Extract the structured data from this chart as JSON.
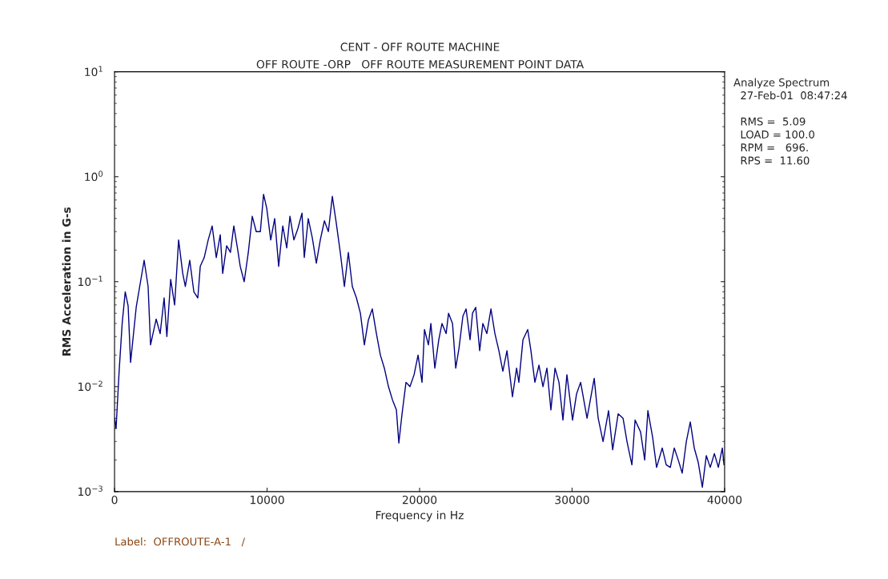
{
  "chart_data": {
    "type": "line",
    "title": "CENT - OFF ROUTE MACHINE",
    "subtitle": "OFF ROUTE -ORP   OFF ROUTE MEASUREMENT POINT DATA",
    "xlabel": "Frequency in Hz",
    "ylabel": "RMS Acceleration in G-s",
    "annotations": [
      "Analyze Spectrum",
      "  27-Feb-01  08:47:24",
      "  RMS =  5.09",
      "  LOAD = 100.0",
      "  RPM =   696.",
      "  RPS =  11.60",
      "Label:  OFFROUTE-A-1   /"
    ],
    "log": "y",
    "grid": false,
    "marker": "none",
    "line_style": "solid",
    "xlim": [
      0,
      40000
    ],
    "xticks": [
      0,
      10000,
      20000,
      30000,
      40000
    ],
    "ylim": [
      0.001,
      10
    ],
    "yticks": [
      {
        "value": 0.001,
        "label": "10$^{−3}$"
      },
      {
        "value": 0.01,
        "label": "10$^{−2}$"
      },
      {
        "value": 0.1,
        "label": "10$^{−1}$"
      },
      {
        "value": 1,
        "label": "10$^{0}$"
      },
      {
        "value": 10,
        "label": "10$^{1}$"
      }
    ],
    "series": [
      {
        "color": "#000080",
        "x": [
          0,
          100,
          300,
          500,
          700,
          890,
          1050,
          1420,
          1940,
          2200,
          2360,
          2730,
          2990,
          3250,
          3430,
          3680,
          3940,
          4200,
          4470,
          4640,
          4930,
          5200,
          5460,
          5620,
          5880,
          6140,
          6400,
          6670,
          6930,
          7090,
          7350,
          7600,
          7820,
          8080,
          8240,
          8500,
          8770,
          9030,
          9290,
          9560,
          9770,
          9980,
          10240,
          10500,
          10760,
          11030,
          11290,
          11500,
          11760,
          12020,
          12290,
          12440,
          12700,
          12970,
          13230,
          13490,
          13760,
          14020,
          14280,
          14540,
          14800,
          15070,
          15330,
          15590,
          15860,
          16120,
          16380,
          16640,
          16900,
          17170,
          17430,
          17690,
          17960,
          18220,
          18480,
          18640,
          18850,
          19110,
          19370,
          19640,
          19900,
          20160,
          20320,
          20580,
          20740,
          21000,
          21260,
          21470,
          21740,
          21900,
          22160,
          22370,
          22580,
          22840,
          23050,
          23310,
          23470,
          23680,
          23940,
          24150,
          24410,
          24680,
          24940,
          25200,
          25460,
          25730,
          26090,
          26360,
          26510,
          26780,
          27090,
          27300,
          27560,
          27830,
          28090,
          28350,
          28610,
          28880,
          29140,
          29400,
          29660,
          30030,
          30290,
          30560,
          30980,
          31450,
          31710,
          32030,
          32390,
          32660,
          33020,
          33340,
          33600,
          33920,
          34130,
          34490,
          34760,
          34970,
          35280,
          35540,
          35910,
          36170,
          36440,
          36700,
          36960,
          37220,
          37490,
          37750,
          38010,
          38270,
          38540,
          38800,
          39060,
          39330,
          39590,
          39850,
          39960
        ],
        "values": [
          0.005,
          0.004,
          0.014,
          0.04,
          0.08,
          0.059,
          0.017,
          0.057,
          0.16,
          0.09,
          0.025,
          0.044,
          0.032,
          0.07,
          0.03,
          0.105,
          0.06,
          0.25,
          0.12,
          0.09,
          0.16,
          0.08,
          0.07,
          0.14,
          0.17,
          0.25,
          0.34,
          0.17,
          0.28,
          0.12,
          0.22,
          0.19,
          0.34,
          0.2,
          0.14,
          0.1,
          0.19,
          0.42,
          0.3,
          0.3,
          0.68,
          0.5,
          0.25,
          0.4,
          0.14,
          0.34,
          0.21,
          0.42,
          0.25,
          0.32,
          0.45,
          0.17,
          0.4,
          0.26,
          0.15,
          0.25,
          0.38,
          0.3,
          0.65,
          0.36,
          0.19,
          0.09,
          0.19,
          0.09,
          0.07,
          0.05,
          0.025,
          0.043,
          0.055,
          0.032,
          0.02,
          0.015,
          0.01,
          0.0075,
          0.006,
          0.0029,
          0.0055,
          0.011,
          0.01,
          0.013,
          0.02,
          0.011,
          0.035,
          0.025,
          0.04,
          0.015,
          0.028,
          0.04,
          0.032,
          0.05,
          0.04,
          0.015,
          0.023,
          0.047,
          0.055,
          0.028,
          0.05,
          0.057,
          0.022,
          0.04,
          0.032,
          0.055,
          0.032,
          0.022,
          0.014,
          0.022,
          0.008,
          0.015,
          0.011,
          0.028,
          0.035,
          0.022,
          0.011,
          0.016,
          0.01,
          0.015,
          0.006,
          0.015,
          0.011,
          0.0048,
          0.013,
          0.0048,
          0.0085,
          0.011,
          0.005,
          0.012,
          0.005,
          0.003,
          0.0059,
          0.0025,
          0.0055,
          0.005,
          0.003,
          0.0018,
          0.0048,
          0.0037,
          0.002,
          0.0059,
          0.0033,
          0.0017,
          0.0026,
          0.0018,
          0.0017,
          0.0026,
          0.002,
          0.0015,
          0.003,
          0.0046,
          0.0026,
          0.0019,
          0.0011,
          0.0022,
          0.0017,
          0.0023,
          0.0017,
          0.0026,
          0.0018
        ]
      }
    ]
  }
}
